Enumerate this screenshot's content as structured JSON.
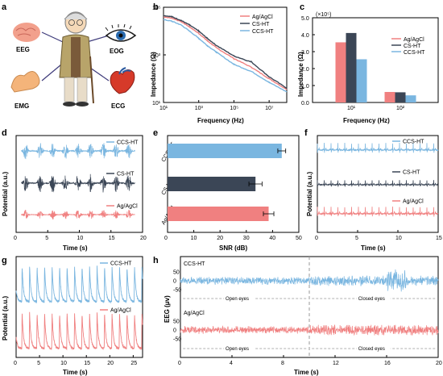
{
  "panels": {
    "a": {
      "label": "a",
      "signals": [
        "EEG",
        "EOG",
        "EMG",
        "ECG"
      ],
      "icons": [
        "brain-icon",
        "eye-icon",
        "arm-muscle-icon",
        "heart-icon",
        "person-icon"
      ],
      "colors": {
        "brain": "#f2a08c",
        "eye": "#2b6cb0",
        "arm": "#f4b47a",
        "heart": "#d63a2a"
      }
    },
    "b": {
      "label": "b"
    },
    "c": {
      "label": "c"
    },
    "d": {
      "label": "d"
    },
    "e": {
      "label": "e"
    },
    "f": {
      "label": "f"
    },
    "g": {
      "label": "g"
    },
    "h": {
      "label": "h"
    }
  },
  "colors": {
    "agagcl": "#f08080",
    "cs": "#3b4656",
    "ccs": "#7ab6e0"
  },
  "chart_data": [
    {
      "id": "b",
      "type": "line",
      "xlabel": "Frequency (Hz)",
      "ylabel": "Impedance (Ω)",
      "xscale": "log",
      "yscale": "log",
      "xlim": [
        10,
        100000000
      ],
      "ylim": [
        10,
        100000
      ],
      "xticks": [
        10,
        1000,
        100000,
        10000000
      ],
      "yticks": [
        10,
        1000,
        100000
      ],
      "xtick_labels": [
        "10¹",
        "10³",
        "10⁵",
        "10⁷"
      ],
      "ytick_labels": [
        "10¹",
        "10³",
        "10⁵"
      ],
      "legend": "top-right",
      "series": [
        {
          "name": "Ag/AgCl",
          "color": "#f08080",
          "x": [
            10,
            30,
            100,
            300,
            1000,
            3000,
            10000,
            100000,
            1000000,
            10000000,
            100000000
          ],
          "y": [
            40000,
            35000,
            25000,
            15000,
            8000,
            4000,
            2000,
            700,
            300,
            100,
            35
          ]
        },
        {
          "name": "CS-HT",
          "color": "#3b4656",
          "x": [
            10,
            30,
            100,
            300,
            1000,
            3000,
            10000,
            100000,
            1000000,
            10000000,
            100000000
          ],
          "y": [
            45000,
            40000,
            28000,
            18000,
            10000,
            5000,
            2500,
            900,
            500,
            120,
            40
          ]
        },
        {
          "name": "CCS-HT",
          "color": "#7ab6e0",
          "x": [
            10,
            30,
            100,
            300,
            1000,
            3000,
            10000,
            100000,
            1000000,
            10000000,
            100000000
          ],
          "y": [
            30000,
            26000,
            18000,
            10000,
            5000,
            2500,
            1300,
            400,
            200,
            70,
            28
          ]
        }
      ]
    },
    {
      "id": "c",
      "type": "bar",
      "xlabel": "Frequency (Hz)",
      "ylabel": "Impedance (Ω)",
      "yunit_label": "(×10⁵)",
      "ylim": [
        0,
        5
      ],
      "yticks": [
        0,
        1,
        2,
        3,
        4,
        5
      ],
      "ytick_labels": [
        "0.0",
        "1.0",
        "2.0",
        "3.0",
        "4.0",
        "5.0"
      ],
      "categories": [
        "10¹",
        "10²"
      ],
      "legend": "top-right",
      "series": [
        {
          "name": "Ag/AgCl",
          "color": "#f08080",
          "values": [
            3.55,
            0.62
          ]
        },
        {
          "name": "CS-HT",
          "color": "#3b4656",
          "values": [
            4.1,
            0.6
          ]
        },
        {
          "name": "CCS-HT",
          "color": "#7ab6e0",
          "values": [
            2.55,
            0.42
          ]
        }
      ]
    },
    {
      "id": "d",
      "type": "line",
      "xlabel": "Time (s)",
      "ylabel": "Potential (a.u.)",
      "xlim": [
        0,
        20
      ],
      "xticks": [
        0,
        5,
        10,
        15,
        20
      ],
      "signal": "EMG bursts",
      "burst_times": [
        1.5,
        3.8,
        5.8,
        7.8,
        9.8,
        11.8,
        13.8,
        15.8,
        17.8
      ],
      "series": [
        {
          "name": "CCS-HT",
          "color": "#7ab6e0",
          "amplitude": 0.9
        },
        {
          "name": "CS-HT",
          "color": "#3b4656",
          "amplitude": 1.0
        },
        {
          "name": "Ag/AgCl",
          "color": "#f08080",
          "amplitude": 0.55
        }
      ]
    },
    {
      "id": "e",
      "type": "bar",
      "orientation": "horizontal",
      "xlabel": "SNR (dB)",
      "xlim": [
        0,
        50
      ],
      "xticks": [
        0,
        10,
        20,
        30,
        40,
        50
      ],
      "categories": [
        "CCS-HT",
        "CS-HT",
        "Ag/AgCl"
      ],
      "values": [
        43.5,
        33.5,
        38.5
      ],
      "errors": [
        1.5,
        2.5,
        2.0
      ],
      "colors": [
        "#7ab6e0",
        "#3b4656",
        "#f08080"
      ]
    },
    {
      "id": "f",
      "type": "line",
      "xlabel": "Time (s)",
      "ylabel": "Potential (a.u.)",
      "xlim": [
        0,
        15
      ],
      "xticks": [
        0,
        5,
        10,
        15
      ],
      "signal": "ECG",
      "beat_period_s": 0.85,
      "series": [
        {
          "name": "CCS-HT",
          "color": "#7ab6e0"
        },
        {
          "name": "CS-HT",
          "color": "#3b4656"
        },
        {
          "name": "Ag/AgCl",
          "color": "#f08080"
        }
      ]
    },
    {
      "id": "g",
      "type": "line",
      "xlabel": "Time (s)",
      "ylabel": "Potential (a.u.)",
      "xlim": [
        0,
        27
      ],
      "xticks": [
        0,
        5,
        10,
        15,
        20,
        25
      ],
      "signal": "EOG blinks",
      "blink_period_s": 1.6,
      "series": [
        {
          "name": "CCS-HT",
          "color": "#7ab6e0"
        },
        {
          "name": "Ag/AgCl",
          "color": "#f08080"
        }
      ]
    },
    {
      "id": "h",
      "type": "line",
      "xlabel": "Time (s)",
      "ylabel": "EEG (μv)",
      "xlim": [
        0,
        20
      ],
      "xticks": [
        0,
        4,
        8,
        12,
        16,
        20
      ],
      "ylim": [
        -60,
        60
      ],
      "yticks": [
        -50,
        0,
        50
      ],
      "divider_time": 10,
      "series": [
        {
          "name": "CCS-HT",
          "color": "#7ab6e0",
          "annotations": [
            "Open eyes",
            "Closed eyes"
          ]
        },
        {
          "name": "Ag/AgCl",
          "color": "#f08080",
          "annotations": [
            "Open eyes",
            "Closed eyes"
          ]
        }
      ]
    }
  ]
}
